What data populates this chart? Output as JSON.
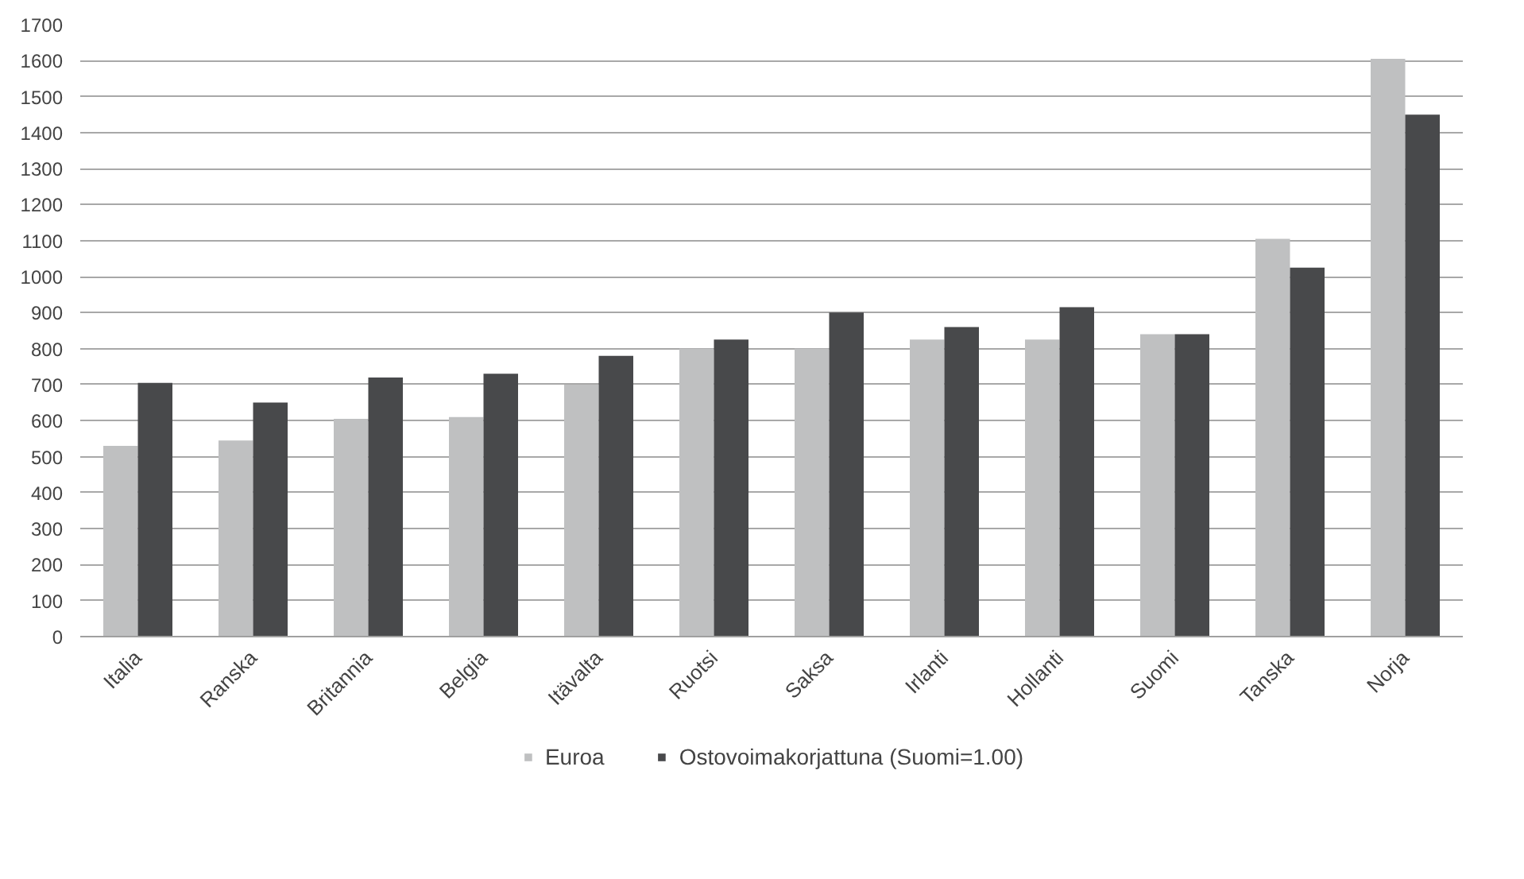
{
  "chart_data": {
    "type": "bar",
    "categories": [
      "Italia",
      "Ranska",
      "Britannia",
      "Belgia",
      "Itävalta",
      "Ruotsi",
      "Saksa",
      "Irlanti",
      "Hollanti",
      "Suomi",
      "Tanska",
      "Norja"
    ],
    "series": [
      {
        "name": "Euroa",
        "color": "#bfc0c1",
        "values": [
          530,
          545,
          605,
          610,
          700,
          800,
          800,
          825,
          825,
          840,
          1105,
          1605
        ]
      },
      {
        "name": "Ostovoimakorjattuna (Suomi=1.00)",
        "color": "#48494b",
        "values": [
          705,
          650,
          720,
          730,
          780,
          825,
          900,
          860,
          915,
          840,
          1025,
          1450
        ]
      }
    ],
    "ylim": [
      0,
      1700
    ],
    "yticks": [
      0,
      100,
      200,
      300,
      400,
      500,
      600,
      700,
      800,
      900,
      1000,
      1100,
      1200,
      1300,
      1400,
      1500,
      1600,
      1700
    ],
    "grid": "y",
    "legend": "bottom"
  }
}
